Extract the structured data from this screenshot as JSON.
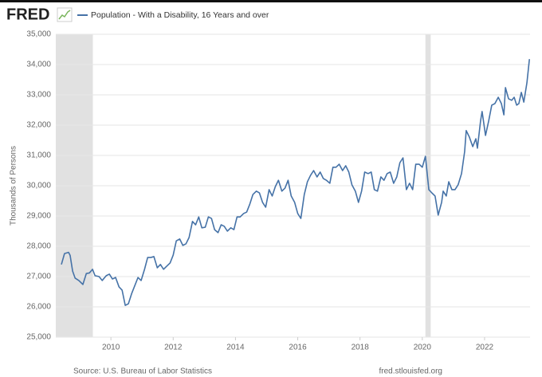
{
  "logo": "FRED",
  "chart_data": {
    "type": "line",
    "ylabel": "Thousands of Persons",
    "source": "Source: U.S. Bureau of Labor Statistics",
    "url": "fred.stlouisfed.org",
    "xlim": [
      2008.23,
      2023.46
    ],
    "xticks": [
      2010,
      2012,
      2014,
      2016,
      2018,
      2020,
      2022
    ],
    "ylim": [
      25000,
      35000
    ],
    "yticks": [
      {
        "value": 25000,
        "label": "25,000"
      },
      {
        "value": 26000,
        "label": "26,000"
      },
      {
        "value": 27000,
        "label": "27,000"
      },
      {
        "value": 28000,
        "label": "28,000"
      },
      {
        "value": 29000,
        "label": "29,000"
      },
      {
        "value": 30000,
        "label": "30,000"
      },
      {
        "value": 31000,
        "label": "31,000"
      },
      {
        "value": 32000,
        "label": "32,000"
      },
      {
        "value": 33000,
        "label": "33,000"
      },
      {
        "value": 34000,
        "label": "34,000"
      },
      {
        "value": 35000,
        "label": "35,000"
      }
    ],
    "grid": true,
    "recessions": [
      [
        2007.92,
        2009.42
      ],
      [
        2020.1,
        2020.27
      ]
    ],
    "recession_color": "#e1e1e1",
    "x": [
      2008.41,
      2008.51,
      2008.64,
      2008.69,
      2008.77,
      2008.85,
      2008.97,
      2009.1,
      2009.21,
      2009.31,
      2009.41,
      2009.49,
      2009.62,
      2009.72,
      2009.85,
      2009.95,
      2010.05,
      2010.15,
      2010.26,
      2010.36,
      2010.46,
      2010.56,
      2010.67,
      2010.77,
      2010.87,
      2010.97,
      2011.08,
      2011.18,
      2011.28,
      2011.38,
      2011.49,
      2011.59,
      2011.69,
      2011.79,
      2011.9,
      2012.0,
      2012.1,
      2012.21,
      2012.31,
      2012.41,
      2012.51,
      2012.62,
      2012.72,
      2012.82,
      2012.92,
      2013.03,
      2013.13,
      2013.23,
      2013.33,
      2013.44,
      2013.54,
      2013.64,
      2013.74,
      2013.85,
      2013.95,
      2014.05,
      2014.15,
      2014.26,
      2014.36,
      2014.46,
      2014.56,
      2014.67,
      2014.77,
      2014.87,
      2014.97,
      2015.08,
      2015.18,
      2015.28,
      2015.38,
      2015.49,
      2015.59,
      2015.69,
      2015.79,
      2015.9,
      2016.0,
      2016.1,
      2016.21,
      2016.31,
      2016.41,
      2016.51,
      2016.62,
      2016.72,
      2016.82,
      2016.92,
      2017.03,
      2017.13,
      2017.23,
      2017.33,
      2017.44,
      2017.54,
      2017.64,
      2017.74,
      2017.85,
      2017.95,
      2018.05,
      2018.15,
      2018.26,
      2018.36,
      2018.46,
      2018.56,
      2018.67,
      2018.77,
      2018.87,
      2018.97,
      2019.08,
      2019.18,
      2019.28,
      2019.38,
      2019.49,
      2019.59,
      2019.69,
      2019.79,
      2019.9,
      2020.0,
      2020.1,
      2020.21,
      2020.31,
      2020.41,
      2020.51,
      2020.62,
      2020.67,
      2020.77,
      2020.85,
      2020.95,
      2021.05,
      2021.15,
      2021.26,
      2021.36,
      2021.41,
      2021.51,
      2021.62,
      2021.72,
      2021.77,
      2021.87,
      2021.92,
      2022.03,
      2022.13,
      2022.23,
      2022.33,
      2022.44,
      2022.54,
      2022.62,
      2022.67,
      2022.77,
      2022.87,
      2022.95,
      2023.03,
      2023.1,
      2023.18,
      2023.26,
      2023.36,
      2023.44
    ],
    "series": [
      {
        "name": "Population - With a Disability, 16 Years and over",
        "color": "#4572a7",
        "values": [
          27400,
          27760,
          27800,
          27700,
          27180,
          26950,
          26870,
          26740,
          27100,
          27120,
          27240,
          27030,
          27000,
          26870,
          27030,
          27080,
          26920,
          26970,
          26660,
          26550,
          26050,
          26100,
          26450,
          26710,
          26970,
          26870,
          27240,
          27630,
          27630,
          27660,
          27290,
          27400,
          27240,
          27340,
          27450,
          27710,
          28180,
          28240,
          28030,
          28080,
          28290,
          28820,
          28710,
          28970,
          28610,
          28630,
          28970,
          28920,
          28550,
          28450,
          28710,
          28660,
          28500,
          28610,
          28550,
          28970,
          28970,
          29080,
          29130,
          29390,
          29710,
          29820,
          29760,
          29450,
          29290,
          29870,
          29660,
          29970,
          30180,
          29820,
          29920,
          30180,
          29660,
          29450,
          29080,
          28920,
          29710,
          30130,
          30340,
          30500,
          30290,
          30450,
          30240,
          30180,
          30080,
          30610,
          30610,
          30710,
          30500,
          30660,
          30450,
          30030,
          29820,
          29450,
          29820,
          30450,
          30400,
          30450,
          29870,
          29820,
          30290,
          30180,
          30400,
          30450,
          30080,
          30290,
          30760,
          30920,
          29870,
          30080,
          29870,
          30710,
          30710,
          30610,
          30970,
          29870,
          29760,
          29660,
          29030,
          29450,
          29820,
          29660,
          30130,
          29870,
          29870,
          30030,
          30400,
          31130,
          31820,
          31610,
          31290,
          31550,
          31240,
          32130,
          32450,
          31660,
          32130,
          32660,
          32710,
          32920,
          32710,
          32340,
          33240,
          32870,
          32820,
          32920,
          32660,
          32710,
          33080,
          32760,
          33400,
          34180
        ]
      }
    ]
  }
}
